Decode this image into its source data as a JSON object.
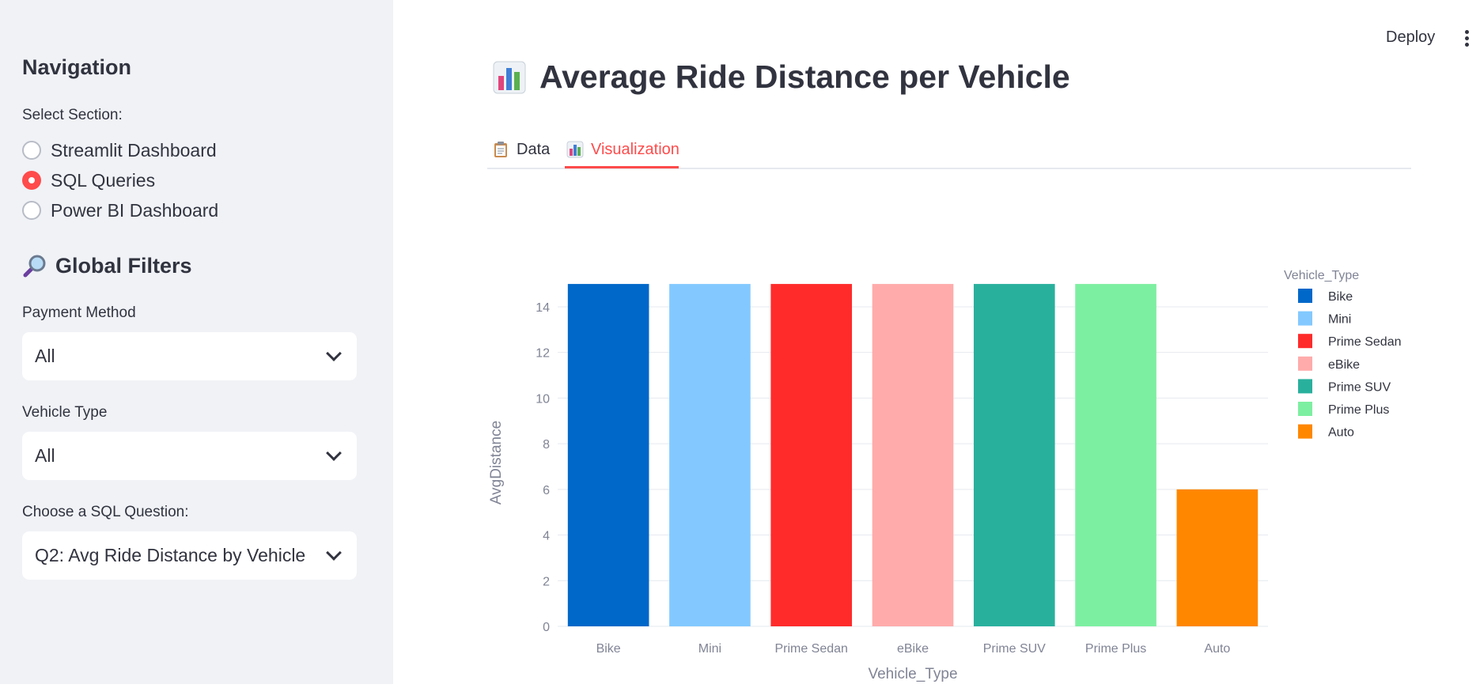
{
  "sidebar": {
    "heading": "Navigation",
    "section_label": "Select Section:",
    "sections": [
      {
        "label": "Streamlit Dashboard",
        "selected": false
      },
      {
        "label": "SQL Queries",
        "selected": true
      },
      {
        "label": "Power BI Dashboard",
        "selected": false
      }
    ],
    "filters_heading": "Global Filters",
    "filters_icon": "magnifier-icon",
    "payment_label": "Payment Method",
    "payment_value": "All",
    "vehicle_label": "Vehicle Type",
    "vehicle_value": "All",
    "sql_label": "Choose a SQL Question:",
    "sql_value": "Q2: Avg Ride Distance by Vehicle"
  },
  "header": {
    "deploy_label": "Deploy",
    "menu_icon": "kebab-menu-icon"
  },
  "main": {
    "title": "Average Ride Distance per Vehicle",
    "title_icon": "bar-chart-icon",
    "tabs": [
      {
        "label": "Data",
        "icon": "clipboard-icon",
        "active": false
      },
      {
        "label": "Visualization",
        "icon": "bar-chart-icon",
        "active": true
      }
    ]
  },
  "colors": {
    "accent": "#ff4b4b",
    "sidebar_bg": "#f0f2f6"
  },
  "chart_data": {
    "type": "bar",
    "categories": [
      "Bike",
      "Mini",
      "Prime Sedan",
      "eBike",
      "Prime SUV",
      "Prime Plus",
      "Auto"
    ],
    "values": [
      15,
      15,
      15,
      15,
      15,
      15,
      6
    ],
    "colors": [
      "#0068c9",
      "#83c9ff",
      "#ff2b2b",
      "#ffabab",
      "#29b09d",
      "#7defa1",
      "#ff8700"
    ],
    "xlabel": "Vehicle_Type",
    "ylabel": "AvgDistance",
    "yticks": [
      0,
      2,
      4,
      6,
      8,
      10,
      12,
      14
    ],
    "ylim": [
      0,
      15.8
    ],
    "legend_title": "Vehicle_Type",
    "legend_position": "top-right",
    "grid": true
  }
}
